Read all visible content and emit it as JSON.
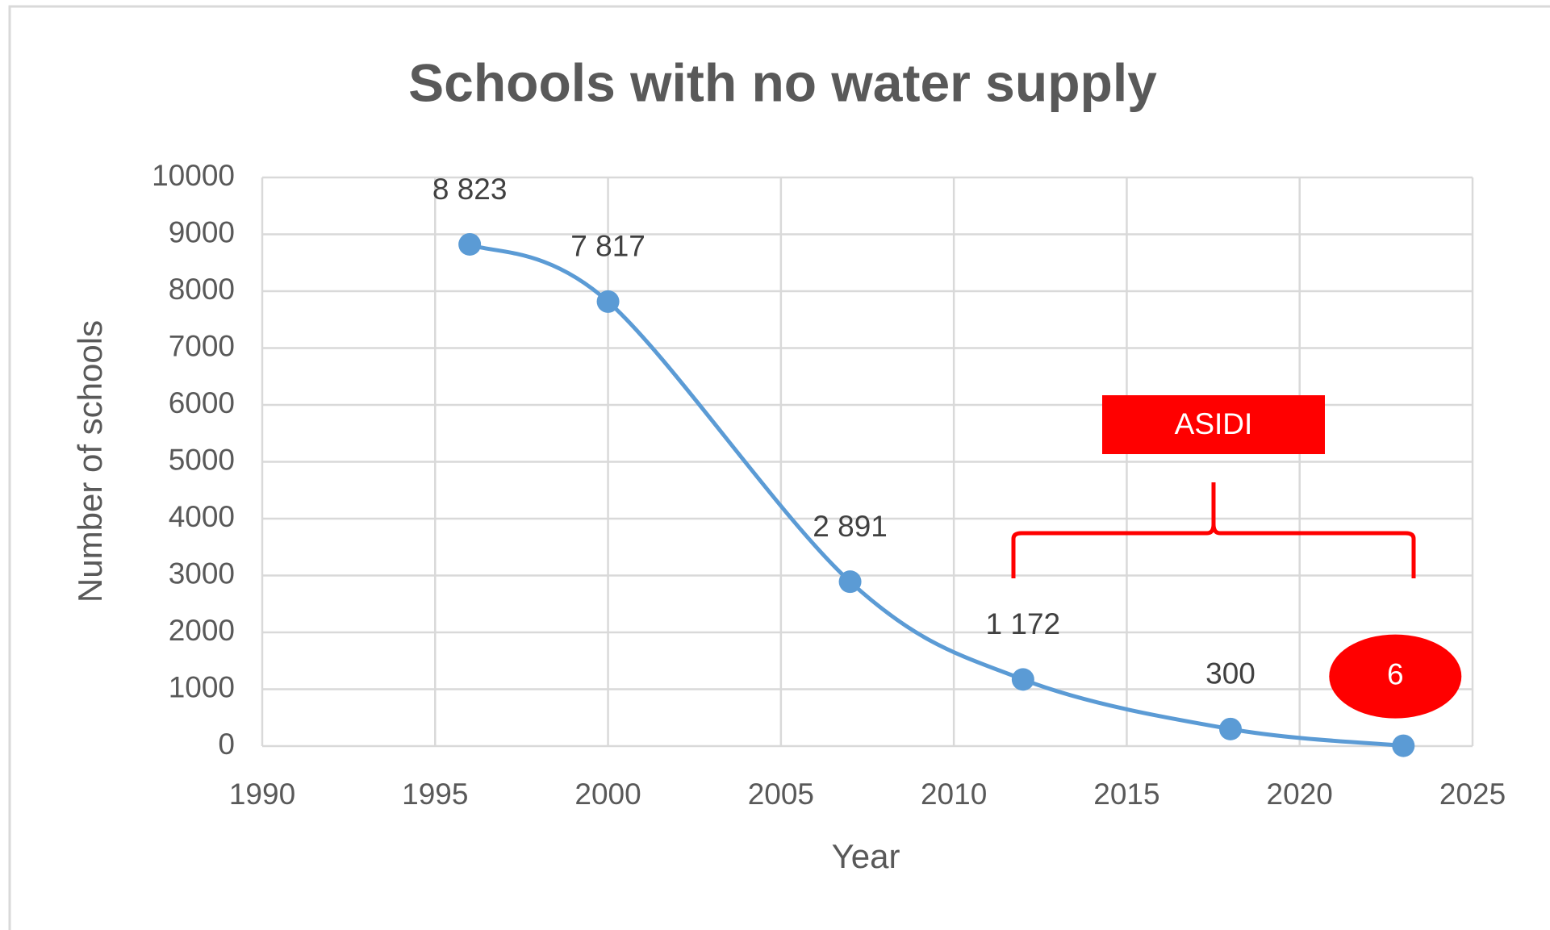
{
  "chart_data": {
    "type": "line",
    "title": "Schools with no water supply",
    "x_label": "Year",
    "y_label": "Number of schools",
    "x": [
      1996,
      2000,
      2007,
      2012,
      2018,
      2023
    ],
    "series": [
      {
        "name": "Schools with no water supply",
        "color": "#5b9bd5",
        "values": [
          8823,
          7817,
          2891,
          1172,
          300,
          6
        ],
        "value_labels": [
          "8 823",
          "7 817",
          "2 891",
          "1 172",
          "300",
          "6"
        ]
      }
    ],
    "xlim": [
      1990,
      2025
    ],
    "xticks": [
      1990,
      1995,
      2000,
      2005,
      2010,
      2015,
      2020,
      2025
    ],
    "ylim": [
      0,
      10000
    ],
    "yticks": [
      0,
      1000,
      2000,
      3000,
      4000,
      5000,
      6000,
      7000,
      8000,
      9000,
      10000
    ],
    "grid": true,
    "smooth": true,
    "annotation": "ASIDI",
    "annotation_color": "#ff0000"
  }
}
